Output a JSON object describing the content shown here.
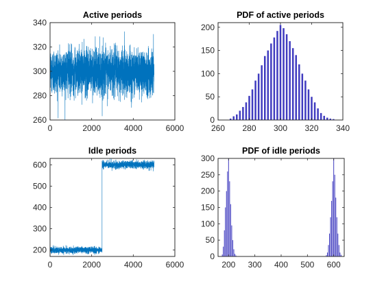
{
  "chart_data": [
    {
      "type": "line",
      "title": "Active periods",
      "xlabel": "",
      "ylabel": "",
      "xlim": [
        0,
        6000
      ],
      "ylim": [
        260,
        340
      ],
      "xticks": [
        0,
        2000,
        4000,
        6000
      ],
      "yticks": [
        260,
        280,
        300,
        320,
        340
      ],
      "color": "#0072BD",
      "series": [
        {
          "x_range": [
            1,
            5000
          ],
          "mean": 300,
          "typical_range": [
            282,
            320
          ],
          "extremes": [
            268,
            335
          ]
        }
      ]
    },
    {
      "type": "bar",
      "title": "PDF of active periods",
      "xlabel": "",
      "ylabel": "",
      "xlim": [
        260,
        340
      ],
      "ylim": [
        0,
        210
      ],
      "xticks": [
        260,
        280,
        300,
        320,
        340
      ],
      "yticks": [
        0,
        50,
        100,
        150,
        200
      ],
      "color": "#3F3BBF",
      "categories": [
        268,
        270,
        272,
        274,
        276,
        278,
        280,
        282,
        284,
        286,
        288,
        290,
        292,
        294,
        296,
        298,
        300,
        302,
        304,
        306,
        308,
        310,
        312,
        314,
        316,
        318,
        320,
        322,
        324,
        326,
        328,
        330,
        332,
        334
      ],
      "values": [
        3,
        8,
        12,
        20,
        28,
        38,
        52,
        66,
        85,
        100,
        118,
        138,
        150,
        165,
        178,
        192,
        205,
        198,
        185,
        170,
        155,
        140,
        120,
        100,
        85,
        66,
        50,
        38,
        25,
        15,
        9,
        5,
        3,
        2
      ]
    },
    {
      "type": "line",
      "title": "Idle periods",
      "xlabel": "",
      "ylabel": "",
      "xlim": [
        0,
        6000
      ],
      "ylim": [
        170,
        630
      ],
      "xticks": [
        0,
        2000,
        4000,
        6000
      ],
      "yticks": [
        200,
        300,
        400,
        500,
        600
      ],
      "color": "#0072BD",
      "series": [
        {
          "segments": [
            {
              "x_range": [
                1,
                2500
              ],
              "mean": 200,
              "typical_range": [
                185,
                215
              ]
            },
            {
              "x_range": [
                2500,
                5000
              ],
              "mean": 600,
              "typical_range": [
                585,
                620
              ]
            }
          ]
        }
      ]
    },
    {
      "type": "bar",
      "title": "PDF of idle periods",
      "xlabel": "",
      "ylabel": "",
      "xlim": [
        160,
        640
      ],
      "ylim": [
        0,
        300
      ],
      "xticks": [
        200,
        300,
        400,
        500,
        600
      ],
      "yticks": [
        0,
        50,
        100,
        150,
        200,
        250,
        300
      ],
      "color": "#3F3BBF",
      "categories": [
        176,
        180,
        184,
        188,
        192,
        196,
        200,
        204,
        208,
        212,
        216,
        220,
        224,
        228,
        572,
        576,
        580,
        584,
        588,
        592,
        596,
        600,
        604,
        608,
        612,
        616,
        620,
        624,
        628
      ],
      "values": [
        6,
        30,
        80,
        150,
        200,
        260,
        300,
        230,
        160,
        95,
        50,
        22,
        8,
        3,
        4,
        12,
        35,
        70,
        120,
        170,
        230,
        300,
        250,
        180,
        120,
        70,
        35,
        12,
        5
      ]
    }
  ]
}
